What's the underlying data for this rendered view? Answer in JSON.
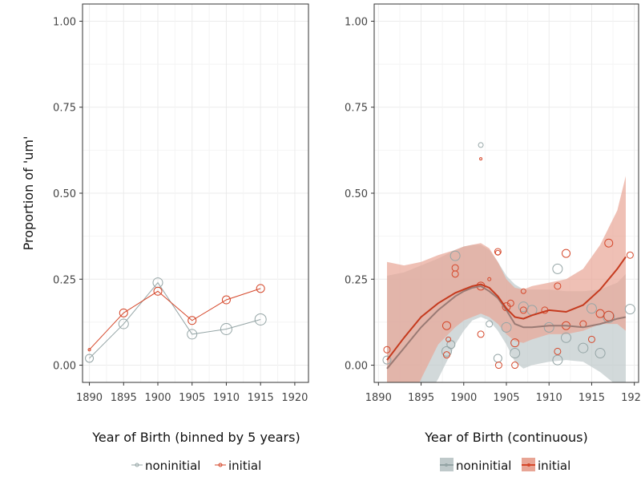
{
  "chart_data": [
    {
      "type": "line",
      "panel": "left",
      "xlabel": "Year of Birth (binned by 5 years)",
      "ylabel": "Proportion of 'um'",
      "xlim": [
        1889,
        1922
      ],
      "ylim": [
        -0.05,
        1.05
      ],
      "xticks": [
        1890,
        1895,
        1900,
        1905,
        1910,
        1915,
        1920
      ],
      "yticks": [
        0.0,
        0.25,
        0.5,
        0.75,
        1.0
      ],
      "ytick_labels": [
        "0.00",
        "0.25",
        "0.50",
        "0.75",
        "1.00"
      ],
      "grid": true,
      "series": [
        {
          "name": "noninitial",
          "color": "#95a5a6",
          "x": [
            1890,
            1895,
            1900,
            1905,
            1910,
            1915
          ],
          "y": [
            0.02,
            0.12,
            0.24,
            0.09,
            0.105,
            0.133
          ],
          "point_size": [
            5,
            6,
            6,
            6,
            7,
            7
          ]
        },
        {
          "name": "initial",
          "color": "#d5472a",
          "x": [
            1890,
            1895,
            1900,
            1905,
            1910,
            1915
          ],
          "y": [
            0.045,
            0.152,
            0.215,
            0.13,
            0.19,
            0.223
          ],
          "point_size": [
            1.5,
            5,
            5,
            5,
            5,
            5
          ]
        }
      ]
    },
    {
      "type": "scatter",
      "panel": "right",
      "xlabel": "Year of Birth (continuous)",
      "xlim": [
        1889.5,
        1920.5
      ],
      "ylim": [
        -0.05,
        1.05
      ],
      "xticks": [
        1890,
        1895,
        1900,
        1905,
        1910,
        1915,
        1920
      ],
      "yticks": [
        0.0,
        0.25,
        0.5,
        0.75,
        1.0
      ],
      "ytick_labels": [
        "0.00",
        "0.25",
        "0.50",
        "0.75",
        "1.00"
      ],
      "grid": true,
      "series": [
        {
          "name": "noninitial",
          "color": "#95a5a6",
          "fill": "#bfc9ca",
          "points": [
            [
              1891,
              0.015,
              5
            ],
            [
              1898,
              0.04,
              6
            ],
            [
              1898.5,
              0.06,
              5
            ],
            [
              1899,
              0.318,
              6
            ],
            [
              1902,
              0.64,
              3
            ],
            [
              1903,
              0.12,
              4
            ],
            [
              1904,
              0.02,
              5
            ],
            [
              1905,
              0.11,
              6
            ],
            [
              1906,
              0.035,
              6
            ],
            [
              1907,
              0.17,
              6
            ],
            [
              1908,
              0.16,
              6
            ],
            [
              1910,
              0.11,
              6
            ],
            [
              1911,
              0.28,
              6
            ],
            [
              1911,
              0.015,
              6
            ],
            [
              1912,
              0.08,
              6
            ],
            [
              1914,
              0.05,
              6
            ],
            [
              1915,
              0.165,
              6
            ],
            [
              1916,
              0.035,
              6
            ],
            [
              1917,
              0.14,
              7
            ],
            [
              1919.5,
              0.163,
              6
            ]
          ],
          "smooth_x": [
            1891,
            1893,
            1895,
            1897,
            1899,
            1900,
            1901,
            1902,
            1903,
            1904,
            1905,
            1906,
            1907,
            1908,
            1910,
            1912,
            1914,
            1916,
            1918,
            1919
          ],
          "smooth_y": [
            -0.01,
            0.05,
            0.11,
            0.16,
            0.2,
            0.215,
            0.225,
            0.23,
            0.215,
            0.195,
            0.16,
            0.12,
            0.11,
            0.11,
            0.115,
            0.115,
            0.11,
            0.12,
            0.135,
            0.14
          ],
          "band_lo": [
            -0.28,
            -0.2,
            -0.12,
            -0.04,
            0.06,
            0.1,
            0.13,
            0.14,
            0.13,
            0.1,
            0.06,
            0.01,
            -0.01,
            0.0,
            0.01,
            0.015,
            0.01,
            -0.02,
            -0.06,
            -0.12
          ],
          "band_hi": [
            0.26,
            0.27,
            0.29,
            0.31,
            0.335,
            0.345,
            0.35,
            0.35,
            0.335,
            0.3,
            0.26,
            0.235,
            0.22,
            0.22,
            0.22,
            0.215,
            0.215,
            0.22,
            0.24,
            0.265
          ]
        },
        {
          "name": "initial",
          "color": "#d5472a",
          "fill": "#e8a595",
          "points": [
            [
              1891,
              0.045,
              4
            ],
            [
              1898,
              0.115,
              5
            ],
            [
              1898,
              0.03,
              4
            ],
            [
              1898.2,
              0.075,
              3
            ],
            [
              1899,
              0.283,
              4
            ],
            [
              1899,
              0.265,
              4
            ],
            [
              1902,
              0.6,
              1.5
            ],
            [
              1902,
              0.09,
              4
            ],
            [
              1902,
              0.23,
              5
            ],
            [
              1903,
              0.25,
              2
            ],
            [
              1904,
              0.33,
              4
            ],
            [
              1904,
              0.327,
              3
            ],
            [
              1904.1,
              0.0,
              4
            ],
            [
              1905,
              0.17,
              5
            ],
            [
              1905.5,
              0.18,
              4
            ],
            [
              1906,
              0.065,
              5
            ],
            [
              1906,
              0.0,
              4
            ],
            [
              1907,
              0.215,
              3
            ],
            [
              1907,
              0.16,
              4
            ],
            [
              1909.5,
              0.16,
              4
            ],
            [
              1911,
              0.23,
              4
            ],
            [
              1911,
              0.04,
              4
            ],
            [
              1912,
              0.325,
              5
            ],
            [
              1912,
              0.115,
              5
            ],
            [
              1914,
              0.12,
              4
            ],
            [
              1915,
              0.075,
              4
            ],
            [
              1916,
              0.15,
              5
            ],
            [
              1917,
              0.355,
              5
            ],
            [
              1917,
              0.143,
              6
            ],
            [
              1919.5,
              0.32,
              4
            ]
          ],
          "smooth_x": [
            1891,
            1893,
            1895,
            1897,
            1899,
            1900,
            1901,
            1902,
            1903,
            1904,
            1905,
            1906,
            1907,
            1908,
            1910,
            1912,
            1914,
            1916,
            1918,
            1919
          ],
          "smooth_y": [
            0.015,
            0.08,
            0.14,
            0.18,
            0.21,
            0.22,
            0.23,
            0.235,
            0.225,
            0.2,
            0.165,
            0.14,
            0.135,
            0.145,
            0.16,
            0.155,
            0.175,
            0.22,
            0.28,
            0.315
          ],
          "band_lo": [
            -0.27,
            -0.15,
            -0.04,
            0.06,
            0.11,
            0.13,
            0.14,
            0.15,
            0.14,
            0.12,
            0.09,
            0.07,
            0.065,
            0.075,
            0.09,
            0.09,
            0.1,
            0.12,
            0.12,
            0.1
          ],
          "band_hi": [
            0.3,
            0.29,
            0.3,
            0.32,
            0.335,
            0.345,
            0.35,
            0.355,
            0.34,
            0.3,
            0.25,
            0.225,
            0.22,
            0.23,
            0.24,
            0.25,
            0.28,
            0.35,
            0.45,
            0.55
          ]
        }
      ]
    }
  ],
  "legends": {
    "left": {
      "items": [
        "noninitial",
        "initial"
      ]
    },
    "right": {
      "items": [
        "noninitial",
        "initial"
      ]
    }
  }
}
